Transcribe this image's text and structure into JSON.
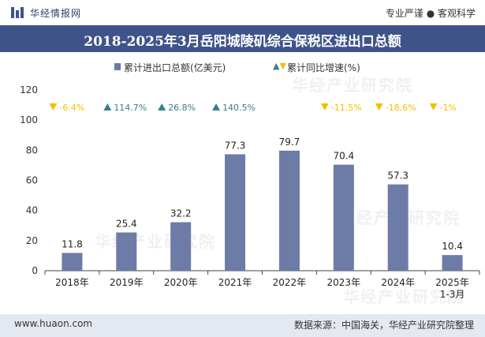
{
  "header": {
    "brand": "华经情报网",
    "slogan": "专业严谨 ● 客观科学"
  },
  "title": "2018-2025年3月岳阳城陵矶综合保税区进出口总额",
  "legend": {
    "bar_label": "累计进出口总额(亿美元)",
    "marker_label": "累计同比增速(%)"
  },
  "watermark": "华经产业研究院",
  "watermark_url": "www.huaon.com",
  "footer": {
    "url": "www.huaon.com",
    "source": "数据来源：中国海关，华经产业研究院整理"
  },
  "colors": {
    "bar": "#6d7ca6",
    "up": "#3a7d8c",
    "down": "#f1c100",
    "title_bg": "#3e5489",
    "footer_bg": "#e4e8f0"
  },
  "chart_data": {
    "type": "bar",
    "categories": [
      "2018年",
      "2019年",
      "2020年",
      "2021年",
      "2022年",
      "2023年",
      "2024年",
      "2025年\n1-3月"
    ],
    "values": [
      11.8,
      25.4,
      32.2,
      77.3,
      79.7,
      70.4,
      57.3,
      10.4
    ],
    "value_labels": [
      "11.8",
      "25.4",
      "32.2",
      "77.3",
      "79.7",
      "70.4",
      "57.3",
      "10.4"
    ],
    "growth": [
      {
        "label": "-6.4%",
        "dir": "down"
      },
      {
        "label": "114.7%",
        "dir": "up"
      },
      {
        "label": "26.8%",
        "dir": "up"
      },
      {
        "label": "140.5%",
        "dir": "up"
      },
      {
        "label": "",
        "dir": "none"
      },
      {
        "label": "-11.5%",
        "dir": "down"
      },
      {
        "label": "-18.6%",
        "dir": "down"
      },
      {
        "label": "-1%",
        "dir": "down"
      }
    ],
    "ylim": [
      0,
      120
    ],
    "yticks": [
      0,
      20,
      40,
      60,
      80,
      100,
      120
    ],
    "grid": false
  }
}
